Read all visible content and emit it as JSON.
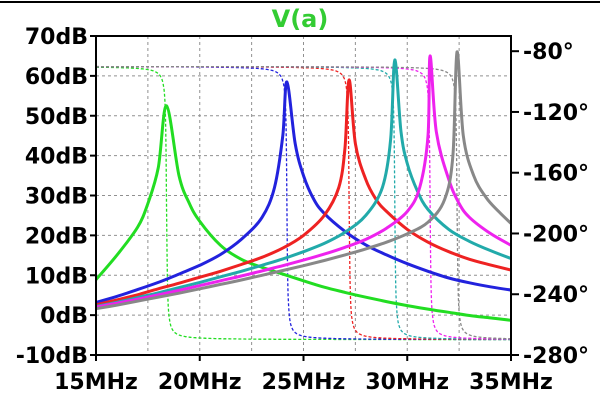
{
  "chart_data": {
    "type": "line",
    "title": "V(a)",
    "title_color": "#33cc33",
    "xlabel": "",
    "ylabel": "",
    "xlim": [
      15,
      35
    ],
    "ylim": [
      -10,
      70
    ],
    "y2lim": [
      -280,
      -70
    ],
    "x_unit": "MHz",
    "y_unit": "dB",
    "y2_unit": "°",
    "x_ticks": [
      {
        "value": 15,
        "label": "15MHz"
      },
      {
        "value": 20,
        "label": "20MHz"
      },
      {
        "value": 25,
        "label": "25MHz"
      },
      {
        "value": 30,
        "label": "30MHz"
      },
      {
        "value": 35,
        "label": "35MHz"
      }
    ],
    "y_ticks": [
      {
        "value": -10,
        "label": "-10dB"
      },
      {
        "value": 0,
        "label": "0dB"
      },
      {
        "value": 10,
        "label": "10dB"
      },
      {
        "value": 20,
        "label": "20dB"
      },
      {
        "value": 30,
        "label": "30dB"
      },
      {
        "value": 40,
        "label": "40dB"
      },
      {
        "value": 50,
        "label": "50dB"
      },
      {
        "value": 60,
        "label": "60dB"
      },
      {
        "value": 70,
        "label": "70dB"
      }
    ],
    "y2_ticks": [
      {
        "value": -80,
        "label": "-80°"
      },
      {
        "value": -120,
        "label": "-120°"
      },
      {
        "value": -160,
        "label": "-160°"
      },
      {
        "value": -200,
        "label": "-200°"
      },
      {
        "value": -240,
        "label": "-240°"
      },
      {
        "value": -280,
        "label": "-280°"
      }
    ],
    "grid": true,
    "series": [
      {
        "color": "#22dd22",
        "resonance_mhz": 18.4,
        "peak_db": 52.5,
        "bw_mhz": 0.1,
        "solid": [
          [
            15.0,
            8.9
          ],
          [
            16.0,
            15.0
          ],
          [
            17.0,
            22.0
          ],
          [
            17.5,
            28.0
          ],
          [
            18.0,
            37.0
          ],
          [
            18.4,
            52.5
          ],
          [
            19.0,
            35.0
          ],
          [
            19.5,
            28.0
          ],
          [
            20.0,
            23.5
          ],
          [
            21.0,
            17.5
          ],
          [
            22.0,
            14.0
          ],
          [
            23.0,
            12.0
          ],
          [
            24.0,
            10.3
          ],
          [
            25.0,
            8.6
          ],
          [
            26.0,
            7.0
          ],
          [
            27.0,
            5.7
          ],
          [
            28.0,
            4.5
          ],
          [
            29.0,
            3.4
          ],
          [
            30.0,
            2.4
          ],
          [
            31.0,
            1.5
          ],
          [
            32.0,
            0.7
          ],
          [
            33.0,
            -0.1
          ],
          [
            34.0,
            -0.7
          ],
          [
            35.0,
            -1.3
          ]
        ]
      },
      {
        "color": "#2222dd",
        "resonance_mhz": 24.2,
        "peak_db": 58.5,
        "bw_mhz": 0.1,
        "solid": [
          [
            15.0,
            3.2
          ],
          [
            16.0,
            4.7
          ],
          [
            17.0,
            6.4
          ],
          [
            18.0,
            8.2
          ],
          [
            19.0,
            10.3
          ],
          [
            20.0,
            12.5
          ],
          [
            21.0,
            15.2
          ],
          [
            22.0,
            19.0
          ],
          [
            23.0,
            24.5
          ],
          [
            23.6,
            32.0
          ],
          [
            24.0,
            45.0
          ],
          [
            24.2,
            58.5
          ],
          [
            24.6,
            43.0
          ],
          [
            25.0,
            35.0
          ],
          [
            25.5,
            29.0
          ],
          [
            26.0,
            25.5
          ],
          [
            27.0,
            21.0
          ],
          [
            28.0,
            17.6
          ],
          [
            29.0,
            15.1
          ],
          [
            30.0,
            12.9
          ],
          [
            31.0,
            11.0
          ],
          [
            32.0,
            9.3
          ],
          [
            33.0,
            8.1
          ],
          [
            34.0,
            7.1
          ],
          [
            35.0,
            6.3
          ]
        ]
      },
      {
        "color": "#ee2222",
        "resonance_mhz": 27.2,
        "peak_db": 59.0,
        "bw_mhz": 0.1,
        "solid": [
          [
            15.0,
            2.6
          ],
          [
            16.0,
            3.8
          ],
          [
            17.0,
            5.1
          ],
          [
            18.0,
            6.6
          ],
          [
            19.0,
            8.0
          ],
          [
            20.0,
            9.5
          ],
          [
            21.0,
            11.0
          ],
          [
            22.0,
            12.7
          ],
          [
            23.0,
            14.5
          ],
          [
            24.0,
            16.8
          ],
          [
            25.0,
            20.0
          ],
          [
            26.0,
            25.0
          ],
          [
            26.7,
            32.0
          ],
          [
            27.0,
            42.0
          ],
          [
            27.2,
            59.0
          ],
          [
            27.5,
            43.0
          ],
          [
            28.0,
            34.0
          ],
          [
            28.5,
            29.0
          ],
          [
            29.0,
            26.0
          ],
          [
            30.0,
            21.5
          ],
          [
            31.0,
            18.3
          ],
          [
            32.0,
            15.9
          ],
          [
            33.0,
            14.0
          ],
          [
            34.0,
            12.6
          ],
          [
            35.0,
            11.3
          ]
        ]
      },
      {
        "color": "#22aaaa",
        "resonance_mhz": 29.4,
        "peak_db": 64.0,
        "bw_mhz": 0.1,
        "solid": [
          [
            15.0,
            2.2
          ],
          [
            16.0,
            3.2
          ],
          [
            17.0,
            4.4
          ],
          [
            18.0,
            5.6
          ],
          [
            19.0,
            6.9
          ],
          [
            20.0,
            8.2
          ],
          [
            21.0,
            9.6
          ],
          [
            22.0,
            11.0
          ],
          [
            23.0,
            12.5
          ],
          [
            24.0,
            14.1
          ],
          [
            25.0,
            15.9
          ],
          [
            26.0,
            18.0
          ],
          [
            27.0,
            20.8
          ],
          [
            28.0,
            25.0
          ],
          [
            28.8,
            32.0
          ],
          [
            29.2,
            44.0
          ],
          [
            29.4,
            64.0
          ],
          [
            29.7,
            46.0
          ],
          [
            30.0,
            38.0
          ],
          [
            30.5,
            31.0
          ],
          [
            31.0,
            26.5
          ],
          [
            32.0,
            21.5
          ],
          [
            33.0,
            18.5
          ],
          [
            34.0,
            16.2
          ],
          [
            35.0,
            14.2
          ]
        ]
      },
      {
        "color": "#ee22ee",
        "resonance_mhz": 31.1,
        "peak_db": 65.0,
        "bw_mhz": 0.1,
        "solid": [
          [
            15.0,
            2.0
          ],
          [
            16.0,
            3.0
          ],
          [
            17.0,
            4.0
          ],
          [
            18.0,
            5.1
          ],
          [
            19.0,
            6.2
          ],
          [
            20.0,
            7.4
          ],
          [
            21.0,
            8.6
          ],
          [
            22.0,
            9.8
          ],
          [
            23.0,
            11.1
          ],
          [
            24.0,
            12.4
          ],
          [
            25.0,
            13.8
          ],
          [
            26.0,
            15.3
          ],
          [
            27.0,
            17.0
          ],
          [
            28.0,
            19.0
          ],
          [
            29.0,
            21.8
          ],
          [
            30.0,
            26.0
          ],
          [
            30.6,
            32.0
          ],
          [
            31.0,
            45.0
          ],
          [
            31.1,
            65.0
          ],
          [
            31.4,
            46.0
          ],
          [
            32.0,
            34.0
          ],
          [
            32.5,
            28.0
          ],
          [
            33.0,
            24.5
          ],
          [
            34.0,
            20.5
          ],
          [
            35.0,
            17.5
          ]
        ]
      },
      {
        "color": "#888888",
        "resonance_mhz": 32.4,
        "peak_db": 66.0,
        "bw_mhz": 0.1,
        "solid": [
          [
            15.0,
            1.6
          ],
          [
            16.0,
            2.5
          ],
          [
            17.0,
            3.5
          ],
          [
            18.0,
            4.5
          ],
          [
            19.0,
            5.5
          ],
          [
            20.0,
            6.6
          ],
          [
            21.0,
            7.7
          ],
          [
            22.0,
            8.8
          ],
          [
            23.0,
            10.0
          ],
          [
            24.0,
            11.2
          ],
          [
            25.0,
            12.4
          ],
          [
            26.0,
            13.7
          ],
          [
            27.0,
            15.1
          ],
          [
            28.0,
            16.6
          ],
          [
            29.0,
            18.3
          ],
          [
            30.0,
            20.4
          ],
          [
            31.0,
            23.3
          ],
          [
            31.8,
            29.0
          ],
          [
            32.2,
            40.0
          ],
          [
            32.4,
            66.0
          ],
          [
            32.7,
            45.0
          ],
          [
            33.2,
            35.0
          ],
          [
            33.8,
            29.5
          ],
          [
            34.4,
            26.0
          ],
          [
            35.0,
            23.0
          ]
        ]
      }
    ]
  }
}
